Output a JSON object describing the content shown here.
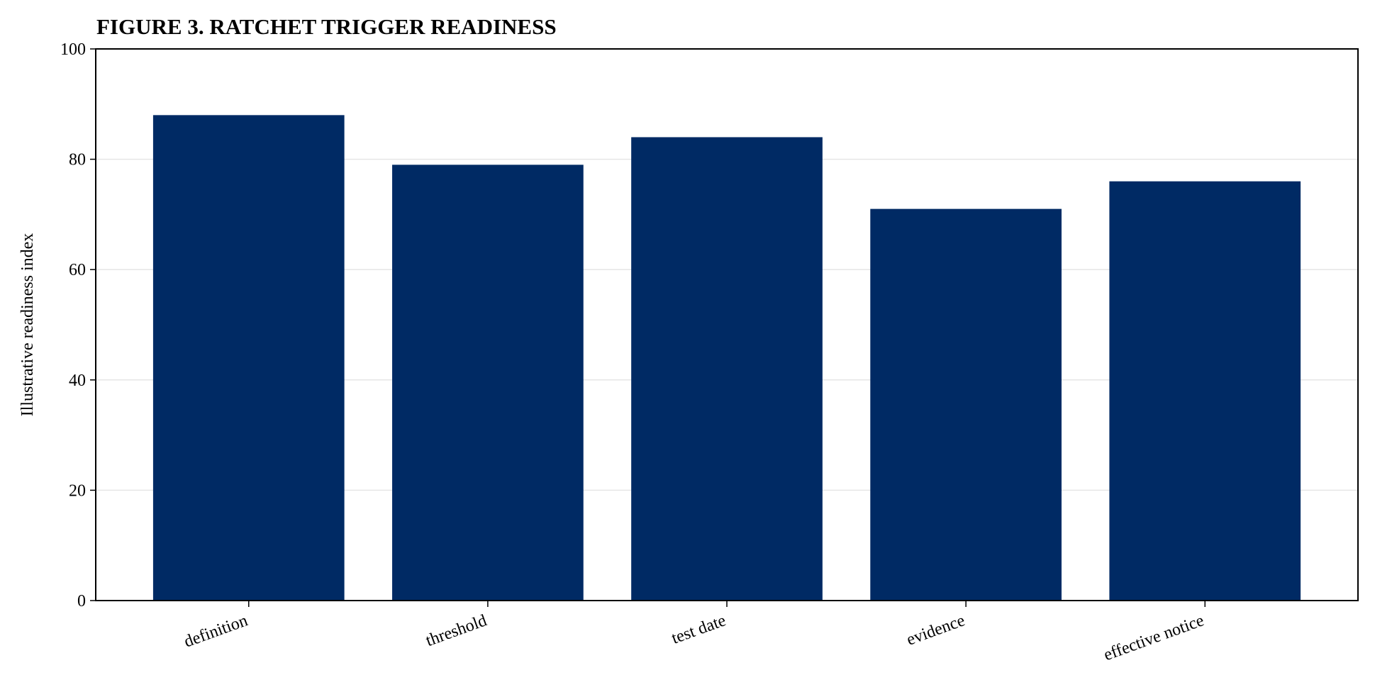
{
  "chart_data": {
    "type": "bar",
    "title": "FIGURE 3. RATCHET TRIGGER READINESS",
    "y_label": "Illustrative readiness index",
    "categories": [
      "definition",
      "threshold",
      "test date",
      "evidence",
      "effective notice"
    ],
    "values": [
      88,
      79,
      84,
      71,
      76
    ],
    "color": "#002a64",
    "ylim": [
      0,
      100
    ],
    "yticks": [
      0,
      20,
      40,
      60,
      80,
      100
    ],
    "grid": true
  }
}
